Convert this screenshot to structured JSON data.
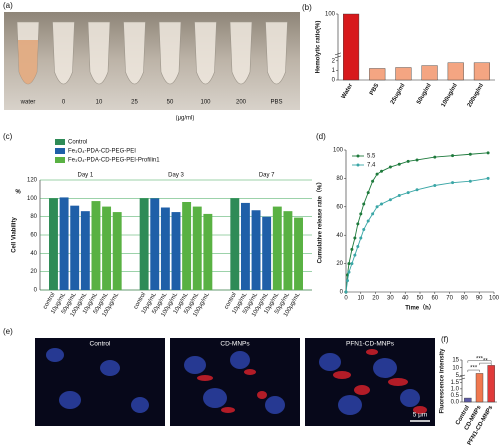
{
  "panel_a": {
    "label": "(a)",
    "tube_labels": [
      "water",
      "0",
      "10",
      "25",
      "50",
      "100",
      "200",
      "PBS"
    ],
    "unit": "(μg/ml)"
  },
  "panel_e": {
    "label": "(e)",
    "titles": [
      "Control",
      "CD-MNPs",
      "PFN1-CD-MNPs"
    ],
    "scale_bar": "5 μm"
  },
  "chart_data": [
    {
      "type": "bar",
      "label": "(b)",
      "y_label": "Hemolytic ratio(%)",
      "categories": [
        "Water",
        "PBS",
        "25ug/ml",
        "50ug/ml",
        "100ug/ml",
        "200ug/ml"
      ],
      "values": [
        100,
        1.2,
        1.3,
        1.5,
        1.8,
        1.8
      ],
      "colors": [
        "#d7191c",
        "#f4a582",
        "#f4a582",
        "#f4a582",
        "#f4a582",
        "#f4a582"
      ],
      "ylim": [
        0,
        100
      ],
      "y_break": [
        2.2,
        98
      ],
      "yticks": [
        0,
        1,
        2,
        100
      ]
    },
    {
      "type": "grouped_bar",
      "label": "(c)",
      "y_label": "Cell Viability",
      "y_unit": "%",
      "categories": [
        "Day 1",
        "Day 3",
        "Day 7"
      ],
      "x_labels": [
        "control",
        "10μg/mL",
        "50μg/mL",
        "100μg/mL",
        "10μg/mL",
        "50μg/mL",
        "100μg/mL"
      ],
      "series": [
        {
          "name": "Control",
          "color": "#2e8b57",
          "values": [
            [
              100
            ],
            [
              100
            ],
            [
              100
            ]
          ]
        },
        {
          "name": "Fe₃O₄-PDA-CD-PEG-PEI",
          "color": "#1f5fa8",
          "values": [
            [
              101,
              92,
              86
            ],
            [
              100,
              90,
              85
            ],
            [
              95,
              87,
              80
            ]
          ]
        },
        {
          "name": "Fe₃O₄-PDA-CD-PEG-PEI-Profilin1",
          "color": "#59b143",
          "values": [
            [
              97,
              91,
              85
            ],
            [
              96,
              91,
              83
            ],
            [
              91,
              86,
              79
            ]
          ]
        }
      ],
      "ylim": [
        0,
        120
      ],
      "yticks": [
        0,
        20,
        40,
        60,
        80,
        100,
        120
      ],
      "grid": true
    },
    {
      "type": "line",
      "label": "(d)",
      "x_label": "Time（h）",
      "y_label": "Cumulative release rate（%）",
      "x": [
        0,
        1,
        2,
        4,
        6,
        8,
        10,
        12,
        15,
        18,
        21,
        24,
        30,
        36,
        42,
        48,
        60,
        72,
        84,
        96
      ],
      "series": [
        {
          "name": "5.5",
          "color": "#1e7a3c",
          "values": [
            0,
            12,
            20,
            30,
            38,
            48,
            55,
            62,
            70,
            78,
            83,
            85,
            88,
            90,
            92,
            93,
            95,
            96,
            97,
            98
          ]
        },
        {
          "name": "7.4",
          "color": "#3aa6a6",
          "values": [
            0,
            8,
            14,
            20,
            26,
            32,
            38,
            44,
            50,
            55,
            60,
            62,
            65,
            68,
            70,
            72,
            75,
            77,
            78,
            80
          ]
        }
      ],
      "xlim": [
        0,
        100
      ],
      "xticks": [
        0,
        10,
        20,
        30,
        40,
        50,
        60,
        70,
        80,
        90,
        100
      ],
      "ylim": [
        0,
        100
      ],
      "yticks": [
        0,
        20,
        40,
        60,
        80,
        100
      ],
      "legend": "upper left"
    },
    {
      "type": "bar",
      "label": "(f)",
      "y_label": "Fluorescence intensity",
      "categories": [
        "Control",
        "CD-MNPs",
        "PFN1-CD-MNPs"
      ],
      "values": [
        0.3,
        6.3,
        11.5
      ],
      "colors": [
        "#5d5aa8",
        "#f0784f",
        "#e03a3a"
      ],
      "ylim": [
        0,
        15
      ],
      "y_break": [
        1.6,
        4
      ],
      "yticks": [
        {
          "value": 0,
          "label": "0.0"
        },
        0.5,
        {
          "value": 1,
          "label": "1.0"
        },
        1.5,
        5,
        10,
        15
      ],
      "annotations": [
        "***",
        "***",
        "**"
      ]
    }
  ]
}
